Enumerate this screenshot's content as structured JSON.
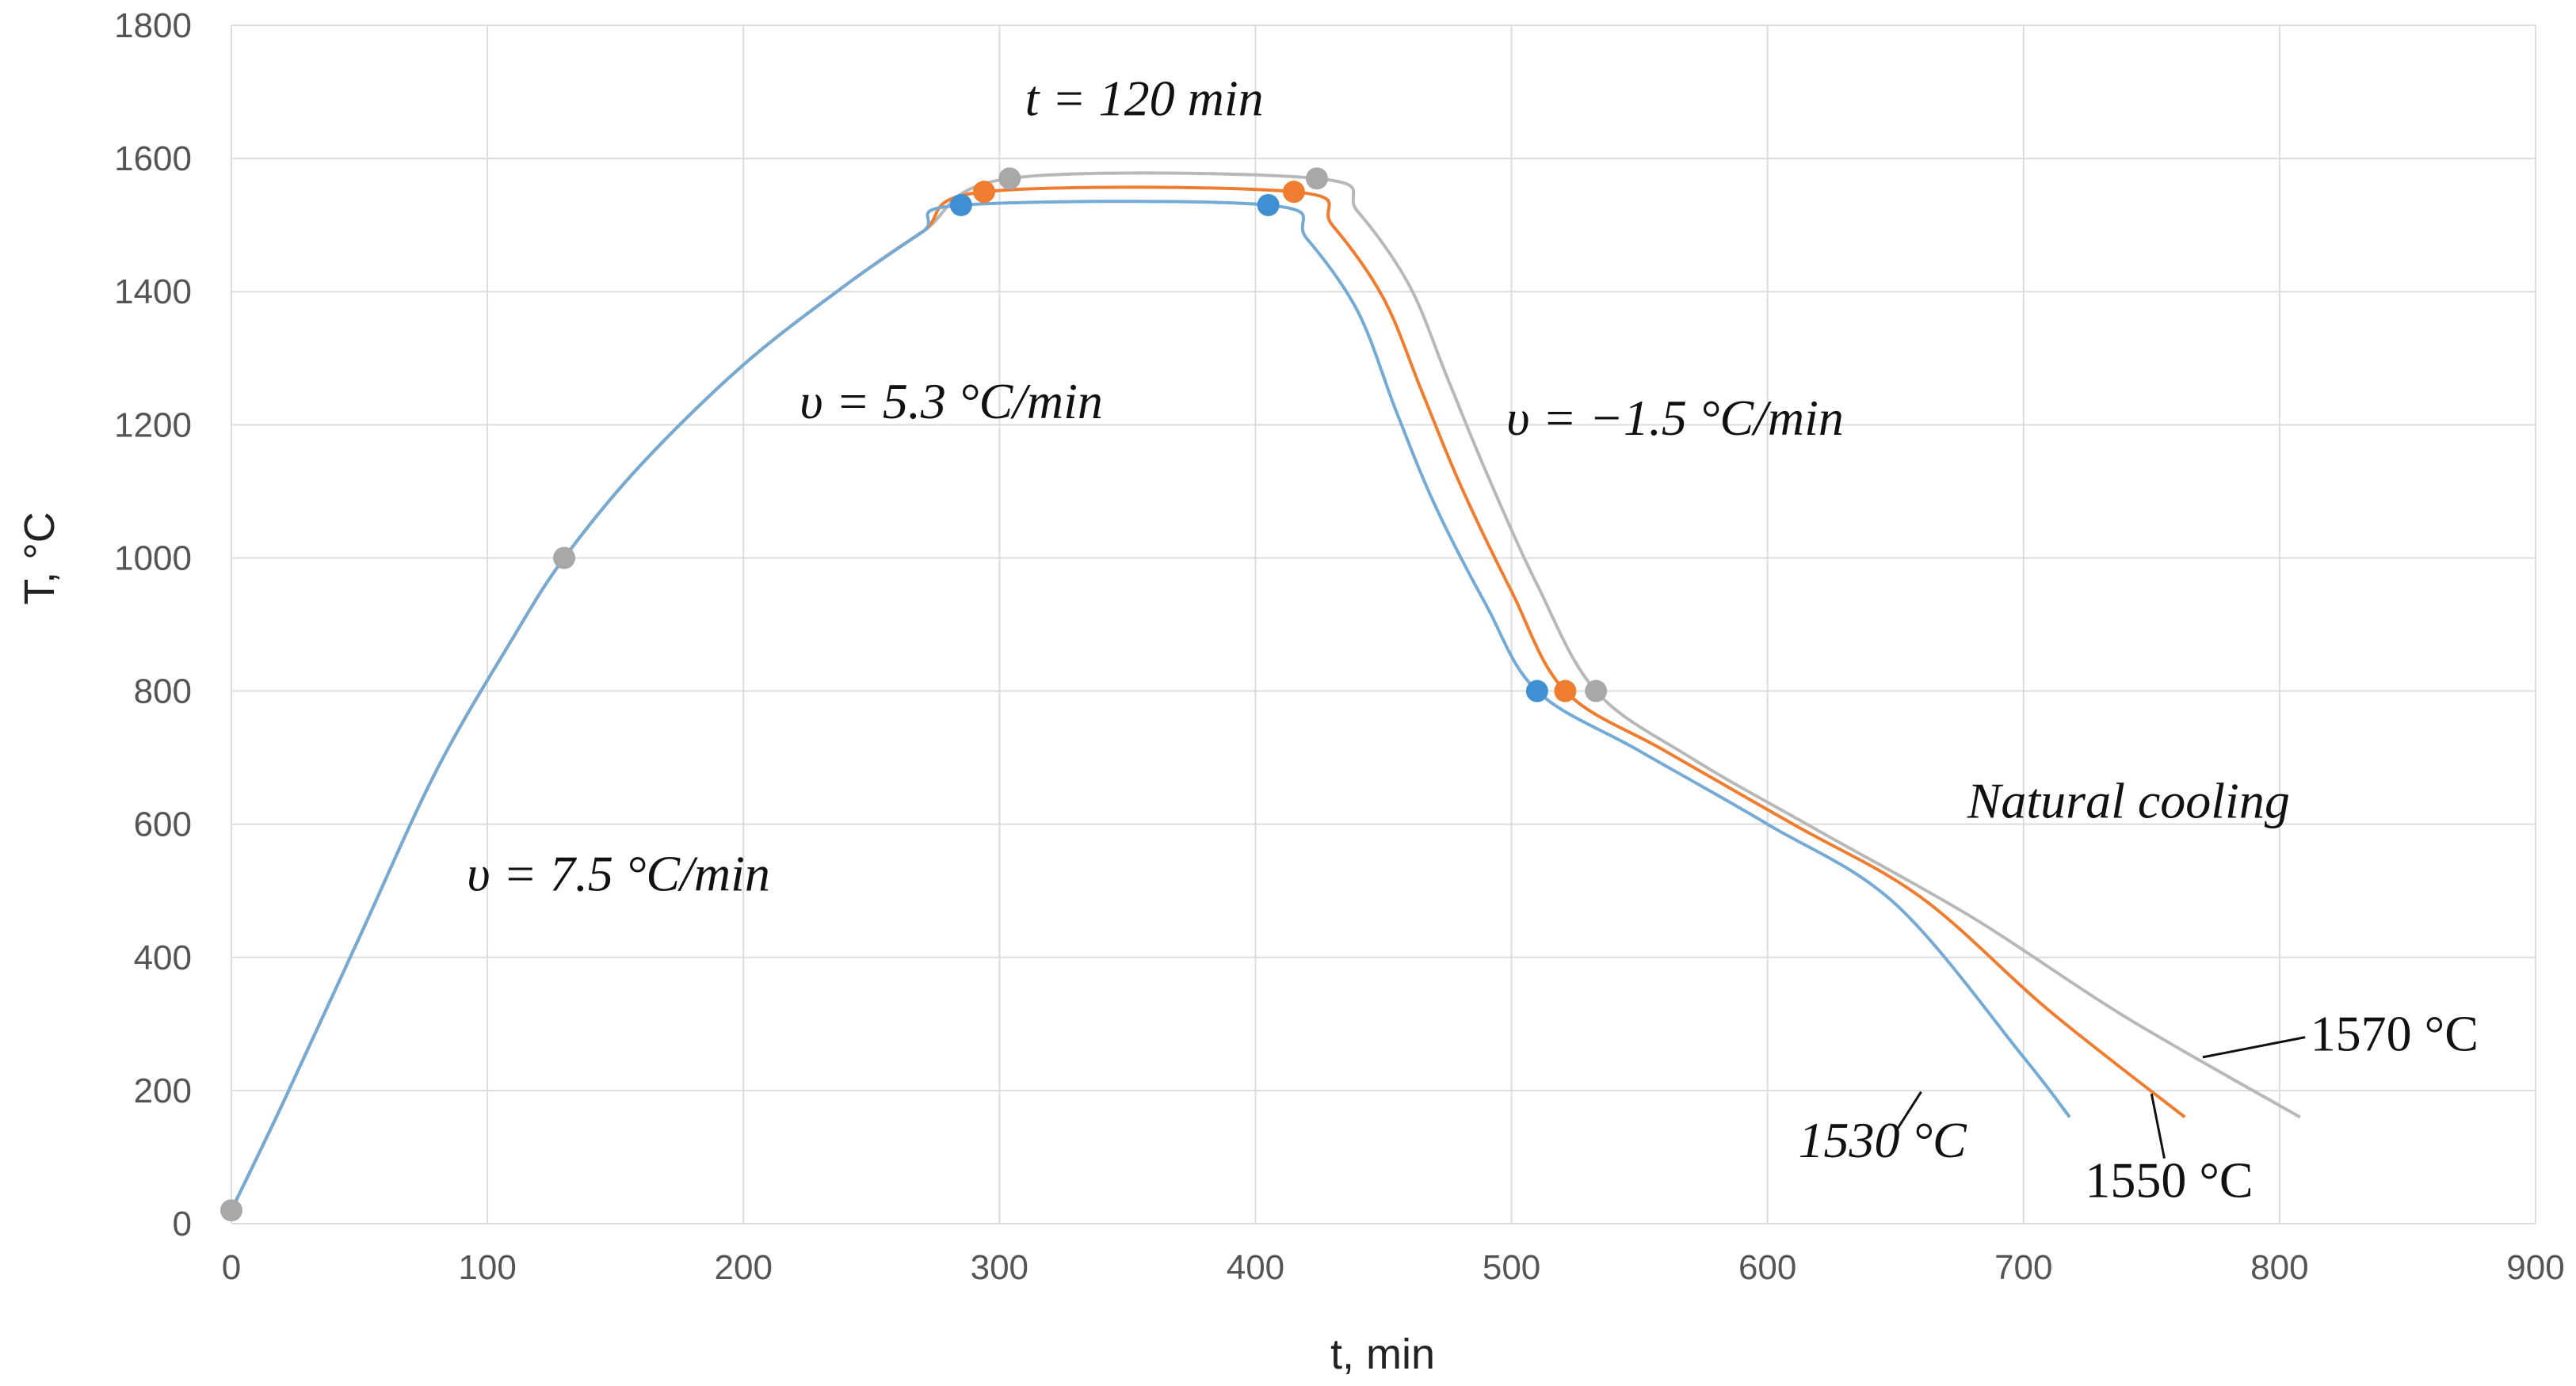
{
  "chart_data": {
    "type": "line",
    "xlabel": "t, min",
    "ylabel": "T, °C",
    "xlim": [
      0,
      900
    ],
    "ylim": [
      0,
      1800
    ],
    "x_ticks": [
      0,
      100,
      200,
      300,
      400,
      500,
      600,
      700,
      800,
      900
    ],
    "y_ticks": [
      0,
      200,
      400,
      600,
      800,
      1000,
      1200,
      1400,
      1600,
      1800
    ],
    "grid": true,
    "colors": {
      "blue": "#74aad6",
      "orange": "#f07d2f",
      "gray": "#b8b8b8",
      "marker_blue": "#3f8fd2",
      "marker_orange": "#f07d2f",
      "marker_gray": "#a8a8a8"
    },
    "series": [
      {
        "name": "1530 °C",
        "color": "blue",
        "points": [
          [
            0,
            20
          ],
          [
            20,
            180
          ],
          [
            50,
            430
          ],
          [
            80,
            680
          ],
          [
            110,
            880
          ],
          [
            130,
            1000
          ],
          [
            160,
            1140
          ],
          [
            200,
            1290
          ],
          [
            240,
            1410
          ],
          [
            270,
            1490
          ],
          [
            285,
            1530
          ],
          [
            405,
            1530
          ],
          [
            420,
            1480
          ],
          [
            440,
            1370
          ],
          [
            455,
            1220
          ],
          [
            470,
            1080
          ],
          [
            490,
            930
          ],
          [
            510,
            800
          ],
          [
            550,
            710
          ],
          [
            600,
            600
          ],
          [
            650,
            480
          ],
          [
            700,
            250
          ],
          [
            718,
            160
          ]
        ],
        "markers": [
          [
            285,
            1530
          ],
          [
            405,
            1530
          ],
          [
            510,
            800
          ]
        ]
      },
      {
        "name": "1550 °C",
        "color": "orange",
        "points": [
          [
            0,
            20
          ],
          [
            20,
            180
          ],
          [
            50,
            430
          ],
          [
            80,
            680
          ],
          [
            110,
            880
          ],
          [
            130,
            1000
          ],
          [
            160,
            1140
          ],
          [
            200,
            1290
          ],
          [
            240,
            1410
          ],
          [
            270,
            1490
          ],
          [
            294,
            1550
          ],
          [
            415,
            1550
          ],
          [
            430,
            1500
          ],
          [
            450,
            1390
          ],
          [
            465,
            1250
          ],
          [
            480,
            1110
          ],
          [
            500,
            950
          ],
          [
            521,
            800
          ],
          [
            560,
            710
          ],
          [
            610,
            600
          ],
          [
            660,
            490
          ],
          [
            710,
            320
          ],
          [
            763,
            160
          ]
        ],
        "markers": [
          [
            294,
            1550
          ],
          [
            415,
            1550
          ],
          [
            521,
            800
          ]
        ]
      },
      {
        "name": "1570 °C",
        "color": "gray",
        "points": [
          [
            0,
            20
          ],
          [
            20,
            180
          ],
          [
            50,
            430
          ],
          [
            80,
            680
          ],
          [
            110,
            880
          ],
          [
            130,
            1000
          ],
          [
            160,
            1140
          ],
          [
            200,
            1290
          ],
          [
            240,
            1410
          ],
          [
            270,
            1490
          ],
          [
            304,
            1570
          ],
          [
            424,
            1570
          ],
          [
            440,
            1520
          ],
          [
            460,
            1410
          ],
          [
            475,
            1270
          ],
          [
            490,
            1130
          ],
          [
            510,
            960
          ],
          [
            533,
            800
          ],
          [
            570,
            700
          ],
          [
            620,
            590
          ],
          [
            680,
            460
          ],
          [
            740,
            310
          ],
          [
            808,
            160
          ]
        ],
        "markers": [
          [
            304,
            1570
          ],
          [
            424,
            1570
          ],
          [
            533,
            800
          ]
        ]
      }
    ],
    "start_marker": [
      0,
      20
    ],
    "mid_marker": [
      130,
      1000
    ],
    "annotations": [
      {
        "text": "t = 120 min",
        "x": 310,
        "y": 1665
      },
      {
        "text": "υ = 5.3 °C/min",
        "x": 222,
        "y": 1210
      },
      {
        "text": "υ = −1.5 °C/min",
        "x": 498,
        "y": 1185
      },
      {
        "text": "υ = 7.5 °C/min",
        "x": 92,
        "y": 500
      },
      {
        "text": "Natural cooling",
        "x": 678,
        "y": 610
      }
    ],
    "series_labels": [
      {
        "text": "1530 °C",
        "italic": true,
        "x": 612,
        "y": 100,
        "leader": [
          [
            660,
            198
          ],
          [
            650,
            138
          ]
        ]
      },
      {
        "text": "1550 °C",
        "italic": false,
        "x": 724,
        "y": 40,
        "leader": [
          [
            750,
            195
          ],
          [
            755,
            98
          ]
        ]
      },
      {
        "text": "1570 °C",
        "italic": false,
        "x": 812,
        "y": 260,
        "leader": [
          [
            770,
            250
          ],
          [
            810,
            280
          ]
        ]
      }
    ]
  }
}
